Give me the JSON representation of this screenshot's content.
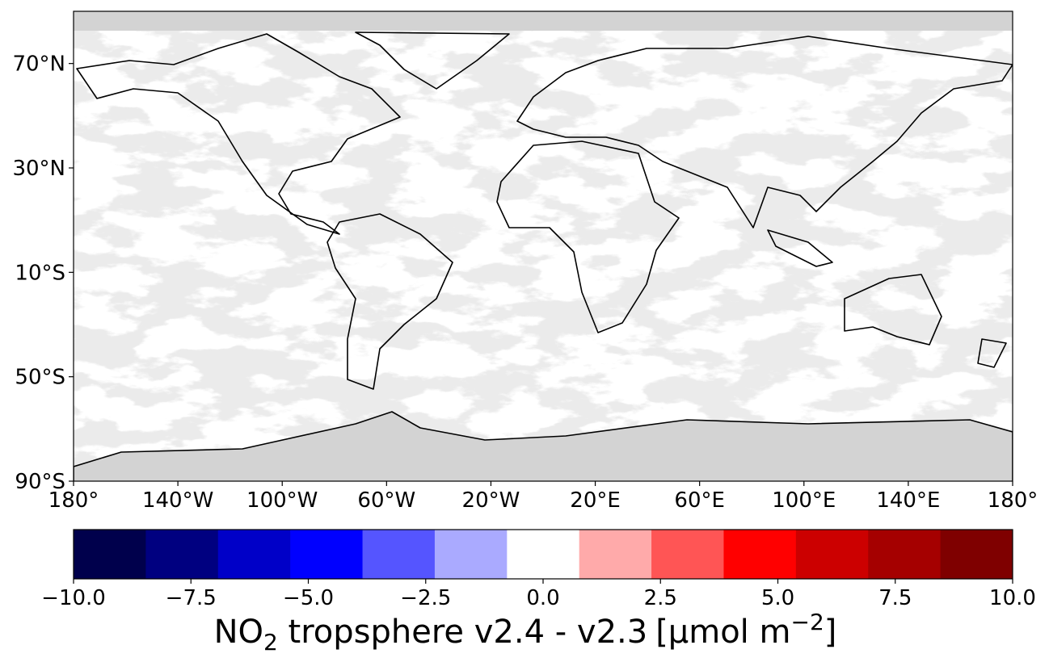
{
  "map": {
    "xlim": [
      -180,
      180
    ],
    "ylim": [
      -90,
      90
    ],
    "xticks": [
      {
        "value": -180,
        "label": "180°"
      },
      {
        "value": -140,
        "label": "140°W"
      },
      {
        "value": -100,
        "label": "100°W"
      },
      {
        "value": -60,
        "label": "60°W"
      },
      {
        "value": -20,
        "label": "20°W"
      },
      {
        "value": 20,
        "label": "20°E"
      },
      {
        "value": 60,
        "label": "60°E"
      },
      {
        "value": 100,
        "label": "100°E"
      },
      {
        "value": 140,
        "label": "140°E"
      },
      {
        "value": 180,
        "label": "180°"
      }
    ],
    "yticks": [
      {
        "value": 70,
        "label": "70°N"
      },
      {
        "value": 30,
        "label": "30°N"
      },
      {
        "value": -10,
        "label": "10°S"
      },
      {
        "value": -50,
        "label": "50°S"
      },
      {
        "value": -90,
        "label": "90°S"
      }
    ]
  },
  "colorbar": {
    "lim": [
      -10,
      10
    ],
    "colors": [
      "#00004c",
      "#000080",
      "#0000c8",
      "#0000ff",
      "#5555ff",
      "#aaaaff",
      "#ffffff",
      "#ffaaaa",
      "#ff5555",
      "#ff0000",
      "#cc0000",
      "#a50000",
      "#7f0000"
    ],
    "ticks": [
      {
        "value": -10,
        "label": "−10.0"
      },
      {
        "value": -7.5,
        "label": "−7.5"
      },
      {
        "value": -5,
        "label": "−5.0"
      },
      {
        "value": -2.5,
        "label": "−2.5"
      },
      {
        "value": 0,
        "label": "0.0"
      },
      {
        "value": 2.5,
        "label": "2.5"
      },
      {
        "value": 5,
        "label": "5.0"
      },
      {
        "value": 7.5,
        "label": "7.5"
      },
      {
        "value": 10,
        "label": "10.0"
      }
    ],
    "label": {
      "species": "NO",
      "subscript": "2",
      "text": " tropsphere v2.4 - v2.3",
      "unit": "[µmol m",
      "superscript": "−2",
      "close": "]"
    }
  }
}
